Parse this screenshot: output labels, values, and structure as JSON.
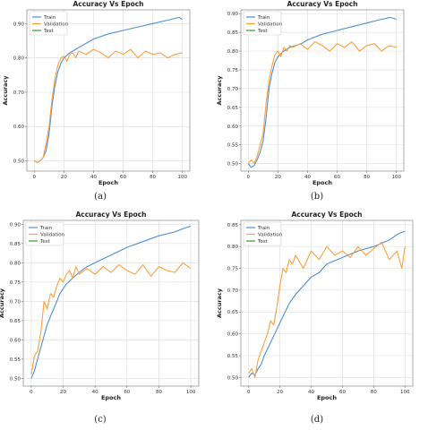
{
  "colors": {
    "train": "#4f8fd0",
    "validation": "#ff9f3a",
    "test": "#2ca02c",
    "grid": "#e1e1e1",
    "axis": "#666666"
  },
  "chart_data": [
    {
      "type": "line",
      "label": "(a)",
      "title": "Accuracy Vs Epoch",
      "xlabel": "Epoch",
      "ylabel": "Accuracy",
      "xlim": [
        -5,
        105
      ],
      "ylim": [
        0.47,
        0.94
      ],
      "xticks": [
        0,
        20,
        40,
        60,
        80,
        100
      ],
      "yticks": [
        0.5,
        0.6,
        0.7,
        0.8,
        0.9
      ],
      "legend": "top-left",
      "grid": true,
      "series": [
        {
          "name": "Train",
          "x": [
            0,
            2,
            4,
            6,
            8,
            10,
            12,
            14,
            16,
            18,
            20,
            24,
            28,
            32,
            36,
            40,
            50,
            60,
            70,
            80,
            90,
            98,
            100
          ],
          "y": [
            0.5,
            0.495,
            0.5,
            0.51,
            0.53,
            0.58,
            0.66,
            0.72,
            0.76,
            0.785,
            0.8,
            0.815,
            0.825,
            0.835,
            0.845,
            0.855,
            0.87,
            0.88,
            0.89,
            0.9,
            0.91,
            0.918,
            0.912
          ]
        },
        {
          "name": "Validation",
          "x": [
            0,
            2,
            4,
            6,
            8,
            10,
            12,
            14,
            16,
            18,
            20,
            22,
            24,
            26,
            28,
            30,
            35,
            40,
            45,
            50,
            55,
            60,
            65,
            70,
            75,
            80,
            85,
            90,
            95,
            100
          ],
          "y": [
            0.5,
            0.495,
            0.5,
            0.51,
            0.55,
            0.6,
            0.68,
            0.74,
            0.78,
            0.8,
            0.805,
            0.79,
            0.81,
            0.815,
            0.8,
            0.82,
            0.81,
            0.825,
            0.815,
            0.8,
            0.82,
            0.81,
            0.825,
            0.8,
            0.82,
            0.81,
            0.815,
            0.8,
            0.81,
            0.815
          ]
        },
        {
          "name": "Test",
          "x": [],
          "y": []
        }
      ]
    },
    {
      "type": "line",
      "label": "(b)",
      "title": "Accuracy Vs Epoch",
      "xlabel": "Epoch",
      "ylabel": "Accuracy",
      "xlim": [
        -5,
        105
      ],
      "ylim": [
        0.48,
        0.91
      ],
      "xticks": [
        0,
        20,
        40,
        60,
        80,
        100
      ],
      "yticks": [
        0.5,
        0.55,
        0.6,
        0.65,
        0.7,
        0.75,
        0.8,
        0.85,
        0.9
      ],
      "legend": "top-left",
      "grid": true,
      "series": [
        {
          "name": "Train",
          "x": [
            0,
            2,
            4,
            6,
            8,
            10,
            12,
            14,
            16,
            18,
            20,
            24,
            28,
            32,
            36,
            40,
            50,
            60,
            70,
            80,
            90,
            96,
            100
          ],
          "y": [
            0.5,
            0.49,
            0.495,
            0.51,
            0.53,
            0.56,
            0.62,
            0.7,
            0.74,
            0.77,
            0.785,
            0.8,
            0.81,
            0.815,
            0.82,
            0.83,
            0.845,
            0.855,
            0.865,
            0.875,
            0.885,
            0.89,
            0.885
          ]
        },
        {
          "name": "Validation",
          "x": [
            0,
            2,
            4,
            6,
            8,
            10,
            12,
            14,
            16,
            18,
            20,
            22,
            24,
            26,
            28,
            30,
            35,
            40,
            45,
            50,
            55,
            60,
            65,
            70,
            75,
            80,
            85,
            90,
            95,
            100
          ],
          "y": [
            0.5,
            0.51,
            0.5,
            0.52,
            0.55,
            0.58,
            0.66,
            0.72,
            0.76,
            0.79,
            0.8,
            0.785,
            0.81,
            0.8,
            0.815,
            0.81,
            0.82,
            0.805,
            0.825,
            0.815,
            0.8,
            0.82,
            0.81,
            0.825,
            0.8,
            0.815,
            0.82,
            0.8,
            0.815,
            0.81
          ]
        },
        {
          "name": "Test",
          "x": [],
          "y": []
        }
      ]
    },
    {
      "type": "line",
      "label": "(c)",
      "title": "Accuracy Vs Epoch",
      "xlabel": "Epoch",
      "ylabel": "Accuracy",
      "xlim": [
        -5,
        105
      ],
      "ylim": [
        0.48,
        0.91
      ],
      "xticks": [
        0,
        20,
        40,
        60,
        80,
        100
      ],
      "yticks": [
        0.5,
        0.55,
        0.6,
        0.65,
        0.7,
        0.75,
        0.8,
        0.85,
        0.9
      ],
      "legend": "top-left",
      "grid": true,
      "series": [
        {
          "name": "Train",
          "x": [
            0,
            2,
            4,
            6,
            8,
            10,
            14,
            18,
            22,
            26,
            30,
            35,
            40,
            50,
            60,
            70,
            80,
            90,
            96,
            100
          ],
          "y": [
            0.5,
            0.52,
            0.55,
            0.58,
            0.61,
            0.64,
            0.68,
            0.72,
            0.745,
            0.76,
            0.775,
            0.79,
            0.8,
            0.82,
            0.84,
            0.855,
            0.87,
            0.88,
            0.89,
            0.895
          ]
        },
        {
          "name": "Validation",
          "x": [
            0,
            2,
            4,
            6,
            8,
            10,
            12,
            14,
            16,
            18,
            20,
            22,
            24,
            26,
            28,
            30,
            35,
            40,
            45,
            50,
            55,
            60,
            65,
            70,
            75,
            80,
            85,
            90,
            95,
            100
          ],
          "y": [
            0.51,
            0.56,
            0.57,
            0.62,
            0.7,
            0.68,
            0.72,
            0.71,
            0.74,
            0.76,
            0.75,
            0.77,
            0.78,
            0.76,
            0.79,
            0.77,
            0.785,
            0.77,
            0.79,
            0.775,
            0.795,
            0.78,
            0.77,
            0.795,
            0.765,
            0.79,
            0.78,
            0.775,
            0.8,
            0.785
          ]
        },
        {
          "name": "Test",
          "x": [],
          "y": []
        }
      ]
    },
    {
      "type": "line",
      "label": "(d)",
      "title": "Accuracy Vs Epoch",
      "xlabel": "Epoch",
      "ylabel": "Accuracy",
      "xlim": [
        -5,
        105
      ],
      "ylim": [
        0.48,
        0.86
      ],
      "xticks": [
        0,
        20,
        40,
        60,
        80,
        100
      ],
      "yticks": [
        0.5,
        0.55,
        0.6,
        0.65,
        0.7,
        0.75,
        0.8,
        0.85
      ],
      "legend": "top-left",
      "grid": true,
      "series": [
        {
          "name": "Train",
          "x": [
            0,
            2,
            4,
            6,
            8,
            10,
            14,
            18,
            22,
            26,
            30,
            35,
            40,
            45,
            50,
            60,
            70,
            80,
            90,
            96,
            100
          ],
          "y": [
            0.5,
            0.51,
            0.505,
            0.52,
            0.53,
            0.55,
            0.58,
            0.61,
            0.64,
            0.67,
            0.69,
            0.71,
            0.73,
            0.74,
            0.76,
            0.775,
            0.79,
            0.8,
            0.815,
            0.83,
            0.835
          ]
        },
        {
          "name": "Validation",
          "x": [
            0,
            2,
            4,
            6,
            8,
            10,
            12,
            14,
            16,
            18,
            20,
            22,
            24,
            26,
            28,
            30,
            35,
            40,
            45,
            50,
            55,
            60,
            65,
            70,
            75,
            80,
            85,
            90,
            95,
            98,
            100
          ],
          "y": [
            0.51,
            0.52,
            0.5,
            0.54,
            0.56,
            0.58,
            0.6,
            0.63,
            0.62,
            0.66,
            0.71,
            0.75,
            0.74,
            0.77,
            0.76,
            0.78,
            0.75,
            0.79,
            0.77,
            0.8,
            0.78,
            0.79,
            0.775,
            0.8,
            0.78,
            0.795,
            0.81,
            0.77,
            0.79,
            0.75,
            0.8
          ]
        },
        {
          "name": "Test",
          "x": [],
          "y": []
        }
      ]
    }
  ]
}
